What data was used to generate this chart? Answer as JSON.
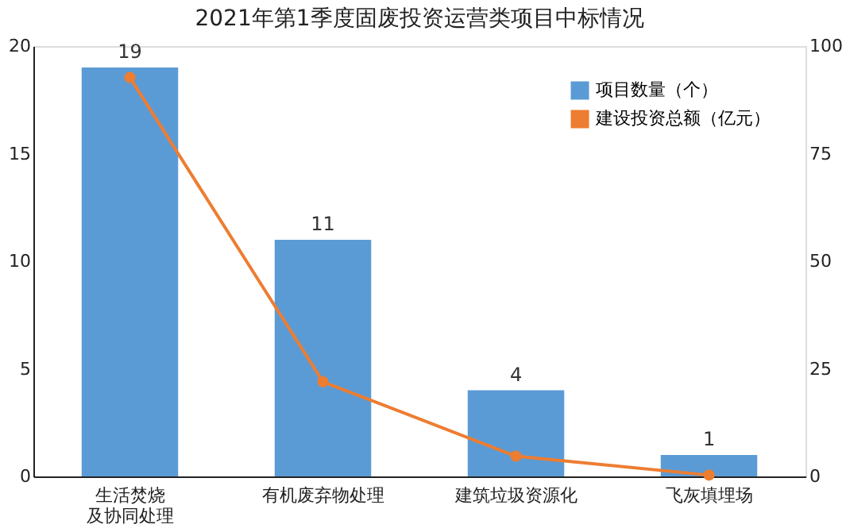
{
  "chart_data": {
    "type": "bar",
    "title": "2021年第1季度固废投资运营类项目中标情况",
    "categories": [
      "生活焚烧及协同处理",
      "有机废弃物处理",
      "建筑垃圾资源化",
      "飞灰填埋场"
    ],
    "series": [
      {
        "name": "项目数量（个）",
        "color": "#5b9bd5",
        "values": [
          19,
          11,
          4,
          1
        ],
        "value_labels": [
          "19",
          "11",
          "4",
          "1"
        ]
      },
      {
        "name": "建设投资总额（亿元）",
        "type": "line",
        "axis": "y2",
        "color": "#ed7d31",
        "values": [
          92.7,
          22,
          4.7,
          0.3
        ],
        "marker": "circle"
      }
    ],
    "ylim": [
      0,
      20
    ],
    "yticks": [
      0,
      5,
      10,
      15,
      20
    ],
    "y2lim": [
      0,
      100
    ],
    "y2ticks": [
      0,
      25,
      50,
      75,
      100
    ],
    "grid": false,
    "legend": "top right"
  }
}
